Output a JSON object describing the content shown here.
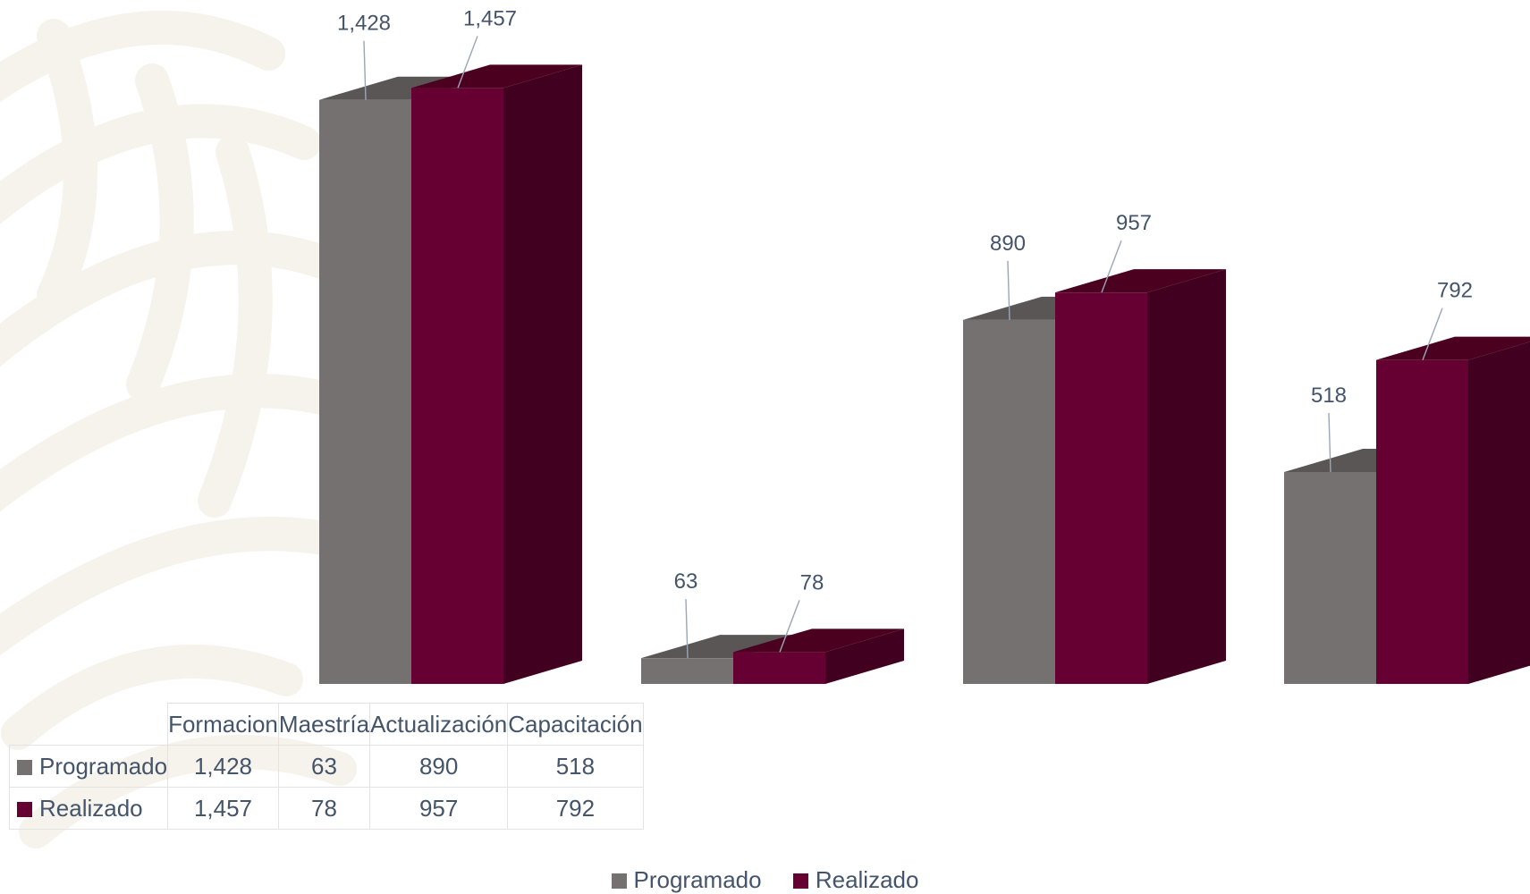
{
  "chart_data": {
    "type": "bar",
    "style": "3d-clustered-column",
    "categories": [
      "Formacion",
      "Maestría",
      "Actualización",
      "Capacitación"
    ],
    "series": [
      {
        "name": "Programado",
        "values": [
          1428,
          63,
          890,
          518
        ],
        "labels": [
          "1,428",
          "63",
          "890",
          "518"
        ],
        "color": "#757171",
        "top_color": "#5a5656"
      },
      {
        "name": "Realizado",
        "values": [
          1457,
          78,
          957,
          792
        ],
        "labels": [
          "1,457",
          "78",
          "957",
          "792"
        ],
        "color": "#660033",
        "top_color": "#4c0020",
        "side_color": "#420020"
      }
    ],
    "ylim": [
      0,
      1500
    ],
    "grid": false,
    "legend": "bottom-center",
    "data_table": true
  },
  "colors": {
    "label_text": "#44546a",
    "table_border": "#e3e3e3",
    "watermark": "#f5f1ea"
  }
}
